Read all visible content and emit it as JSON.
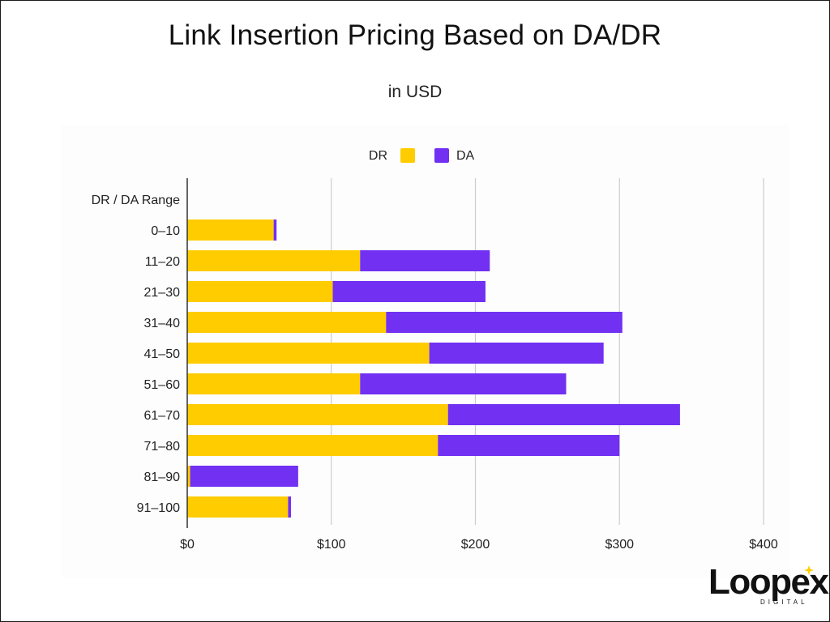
{
  "colors": {
    "dr": "#ffcc00",
    "da": "#7130f2",
    "grid": "#cccccc",
    "axis": "#333333"
  },
  "logo": {
    "word": "Loopex",
    "sub": "DIGITAL"
  },
  "chart_data": {
    "type": "bar",
    "orientation": "horizontal",
    "stacked": true,
    "title": "Link Insertion Pricing Based on DA/DR",
    "subtitle": "in USD",
    "xlabel": "",
    "ylabel": "",
    "category_header": "DR / DA Range",
    "categories": [
      "0–10",
      "11–20",
      "21–30",
      "31–40",
      "41–50",
      "51–60",
      "61–70",
      "71–80",
      "81–90",
      "91–100"
    ],
    "series": [
      {
        "name": "DR",
        "values": [
          60,
          120,
          101,
          138,
          168,
          120,
          181,
          174,
          2,
          70
        ]
      },
      {
        "name": "DA",
        "values": [
          2,
          90,
          106,
          164,
          121,
          143,
          161,
          126,
          75,
          2
        ]
      }
    ],
    "xlim": [
      0,
      400
    ],
    "xticks": [
      0,
      100,
      200,
      300,
      400
    ],
    "xtick_labels": [
      "$0",
      "$100",
      "$200",
      "$300",
      "$400"
    ],
    "grid": "vertical",
    "legend": "top-center"
  }
}
